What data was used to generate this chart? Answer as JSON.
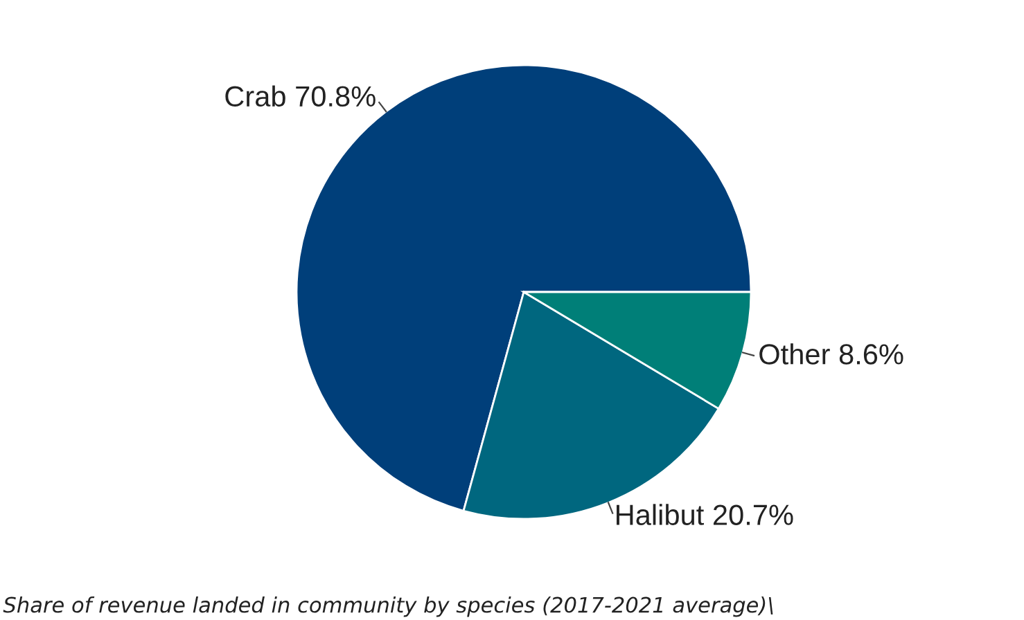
{
  "chart_data": {
    "type": "pie",
    "categories": [
      "Crab",
      "Halibut",
      "Other"
    ],
    "values": [
      70.8,
      20.7,
      8.6
    ],
    "colors": [
      "#003f7a",
      "#00677f",
      "#007f78"
    ],
    "value_labels": [
      "70.8%",
      "20.7%",
      "8.6%"
    ],
    "annotations": [
      "Share of revenue landed in community by species (2017-2021 average)\\"
    ]
  }
}
